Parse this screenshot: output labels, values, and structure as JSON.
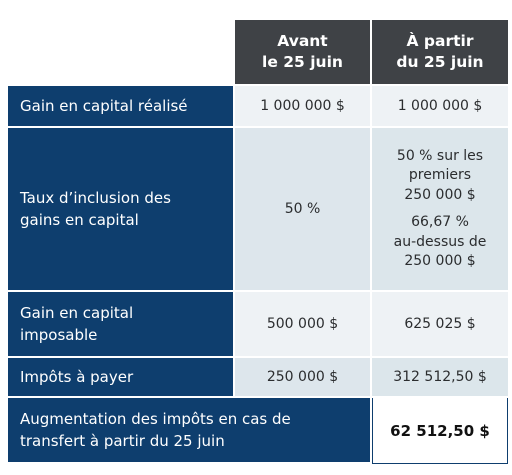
{
  "header": {
    "col_before": [
      "Avant",
      "le 25 juin"
    ],
    "col_after": [
      "À partir",
      "du 25 juin"
    ]
  },
  "rows": [
    {
      "label": [
        "Gain en capital réalisé"
      ],
      "before": "1 000 000 $",
      "after": "1 000 000 $"
    },
    {
      "label": [
        "Taux d’inclusion des",
        "gains en capital"
      ],
      "before": "50 %",
      "after_a": [
        "50 % sur les",
        "premiers",
        "250 000 $"
      ],
      "after_b": [
        "66,67 %",
        "au-dessus de",
        "250 000 $"
      ]
    },
    {
      "label": [
        "Gain en capital",
        "imposable"
      ],
      "before": "500 000 $",
      "after": "625 025 $"
    },
    {
      "label": [
        "Impôts à payer"
      ],
      "before": "250 000 $",
      "after": "312 512,50 $"
    },
    {
      "label": [
        "Augmentation des impôts en cas de",
        "transfert à partir du 25 juin"
      ],
      "after": "62 512,50 $"
    }
  ],
  "colors": {
    "header_bg": "#3f4246",
    "label_bg": "#0e3e6e",
    "value_bg": "#dde6ec",
    "value_bg_light": "#eef2f5"
  }
}
